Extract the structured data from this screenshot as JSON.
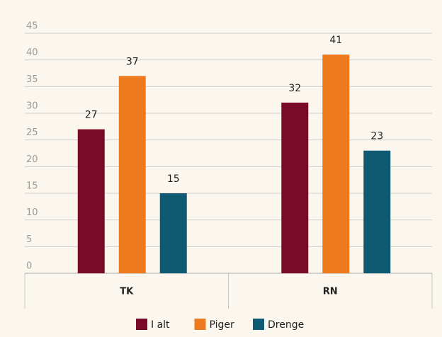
{
  "chart_data": {
    "type": "bar",
    "categories": [
      "TK",
      "RN"
    ],
    "series": [
      {
        "name": "I alt",
        "color": "#7a0b28",
        "values": [
          27,
          32
        ]
      },
      {
        "name": "Piger",
        "color": "#ee7a1f",
        "values": [
          37,
          41
        ]
      },
      {
        "name": "Drenge",
        "color": "#0f5a72",
        "values": [
          15,
          23
        ]
      }
    ],
    "ylim": [
      0,
      45
    ],
    "yticks": [
      0,
      5,
      10,
      15,
      20,
      25,
      30,
      35,
      40,
      45
    ],
    "grid": true,
    "legend": "bottom"
  }
}
